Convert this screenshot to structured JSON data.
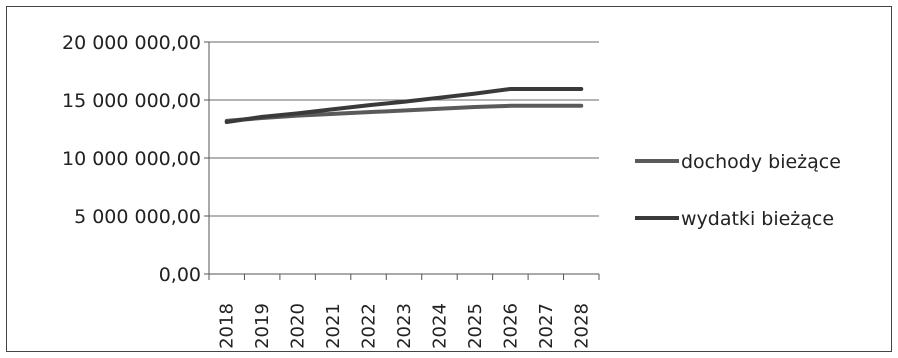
{
  "chart_data": {
    "type": "line",
    "title": "",
    "xlabel": "",
    "ylabel": "",
    "x": [
      "2018",
      "2019",
      "2020",
      "2021",
      "2022",
      "2023",
      "2024",
      "2025",
      "2026",
      "2027",
      "2028"
    ],
    "ylim": [
      0,
      20000000
    ],
    "yticks": [
      0,
      5000000,
      10000000,
      15000000,
      20000000
    ],
    "ytick_labels": [
      "0,00",
      "5 000 000,00",
      "10 000 000,00",
      "15 000 000,00",
      "20 000 000,00"
    ],
    "grid": "horizontal",
    "legend_position": "right",
    "series": [
      {
        "name": "dochody bieżące",
        "color": "#5a5a5a",
        "values": [
          13200000,
          13450000,
          13650000,
          13800000,
          13950000,
          14100000,
          14250000,
          14400000,
          14500000,
          14500000,
          14500000
        ]
      },
      {
        "name": "wydatki bieżące",
        "color": "#3a3a3a",
        "values": [
          13100000,
          13550000,
          13850000,
          14200000,
          14550000,
          14850000,
          15200000,
          15550000,
          15950000,
          15950000,
          15950000
        ]
      }
    ]
  }
}
